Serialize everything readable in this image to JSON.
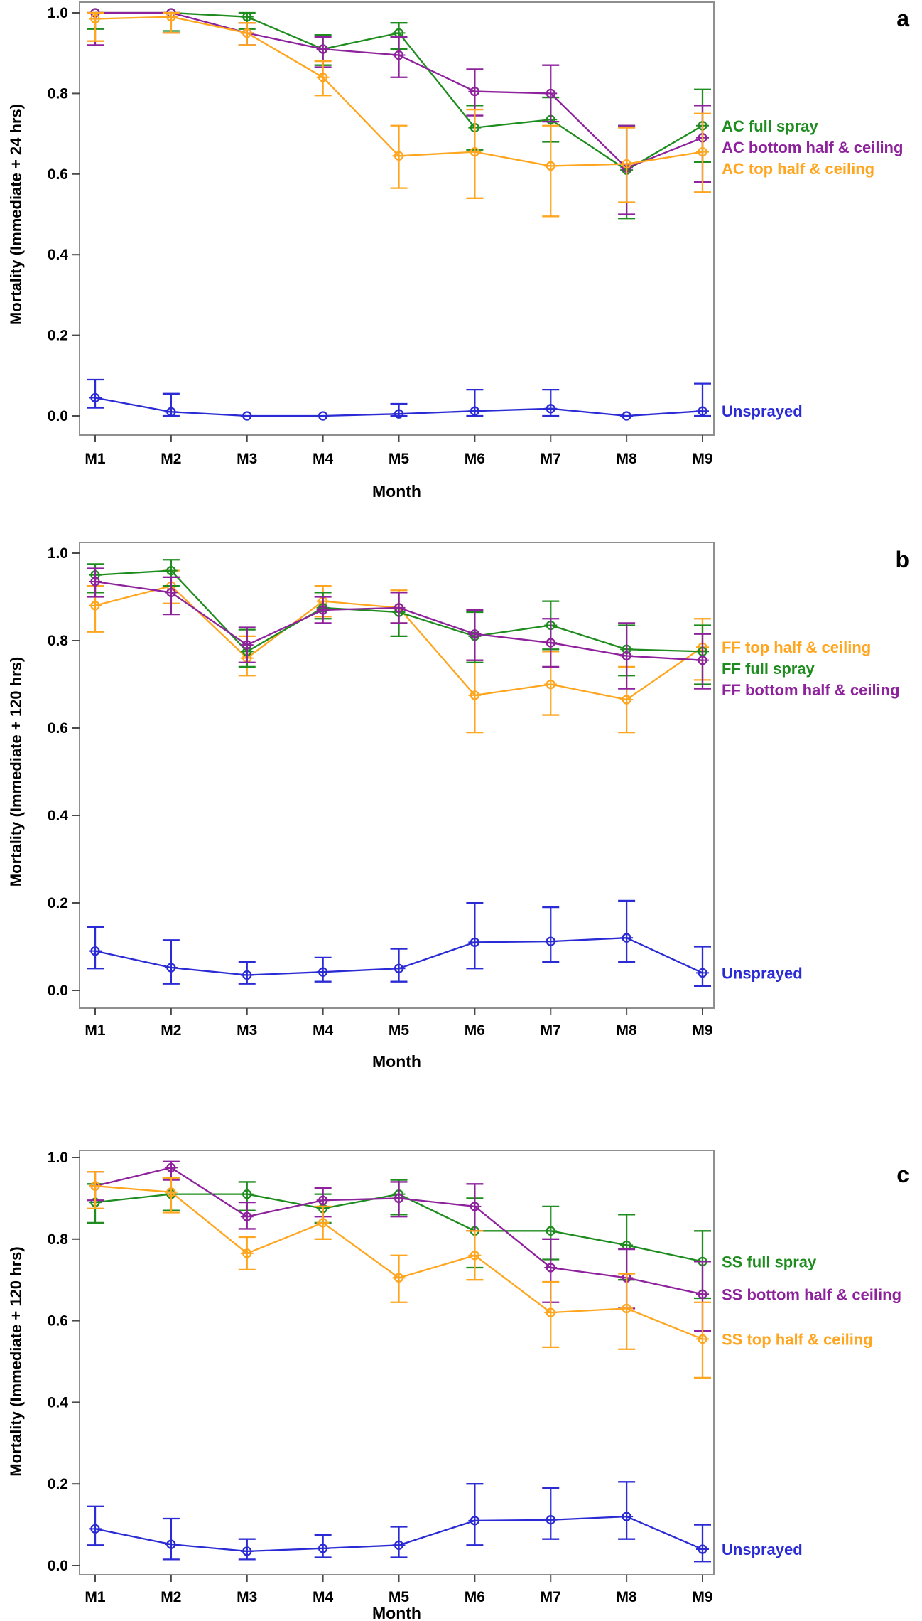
{
  "figure": {
    "xlabel": "Month",
    "categories": [
      "M1",
      "M2",
      "M3",
      "M4",
      "M5",
      "M6",
      "M7",
      "M8",
      "M9"
    ],
    "ytick_labels": [
      "1.0",
      "0.8",
      "0.6",
      "0.4",
      "0.2",
      "0.0"
    ]
  },
  "colors": {
    "green": "#1e8c1e",
    "purple": "#8e219c",
    "orange": "#ffa51e",
    "blue": "#2b2bd5",
    "frame": "#8f8f8f",
    "axis": "#4a4a4a",
    "text": "#000000",
    "background": "#ffffff"
  },
  "chart_data": [
    {
      "type": "line",
      "panel_label": "a",
      "xlabel": "Month",
      "ylabel": "Mortality (Immediate + 24 hrs)",
      "categories": [
        "M1",
        "M2",
        "M3",
        "M4",
        "M5",
        "M6",
        "M7",
        "M8",
        "M9"
      ],
      "ylim": [
        0.0,
        1.0
      ],
      "yticks": [
        1.0,
        0.8,
        0.6,
        0.4,
        0.2,
        0.0
      ],
      "grid": false,
      "legend_position": "right-annotated",
      "marker": "open-circle",
      "error_bars": true,
      "series": [
        {
          "name": "AC full spray",
          "color": "#1e8c1e",
          "values": [
            1.0,
            1.0,
            0.99,
            0.91,
            0.95,
            0.715,
            0.735,
            0.61,
            0.72
          ],
          "err_lo": [
            0.96,
            0.955,
            0.96,
            0.87,
            0.91,
            0.66,
            0.68,
            0.49,
            0.63
          ],
          "err_hi": [
            1.0,
            1.0,
            1.0,
            0.945,
            0.975,
            0.77,
            0.79,
            0.72,
            0.81
          ]
        },
        {
          "name": "AC bottom half & ceiling",
          "color": "#8e219c",
          "values": [
            1.0,
            1.0,
            0.95,
            0.91,
            0.895,
            0.805,
            0.8,
            0.615,
            0.69
          ],
          "err_lo": [
            0.92,
            0.95,
            0.92,
            0.865,
            0.84,
            0.745,
            0.73,
            0.5,
            0.58
          ],
          "err_hi": [
            1.0,
            1.0,
            0.975,
            0.94,
            0.94,
            0.86,
            0.87,
            0.72,
            0.77
          ]
        },
        {
          "name": "AC top half & ceiling",
          "color": "#ffa51e",
          "values": [
            0.985,
            0.99,
            0.95,
            0.84,
            0.645,
            0.655,
            0.62,
            0.625,
            0.655
          ],
          "err_lo": [
            0.93,
            0.95,
            0.92,
            0.795,
            0.565,
            0.54,
            0.495,
            0.53,
            0.555
          ],
          "err_hi": [
            1.0,
            1.0,
            0.975,
            0.88,
            0.72,
            0.76,
            0.72,
            0.715,
            0.75
          ]
        },
        {
          "name": "Unsprayed",
          "color": "#2b2bd5",
          "values": [
            0.045,
            0.01,
            0.0,
            0.0,
            0.005,
            0.012,
            0.018,
            0.0,
            0.012
          ],
          "err_lo": [
            0.02,
            0.0,
            0.0,
            0.0,
            0.0,
            0.0,
            0.0,
            0.0,
            0.0
          ],
          "err_hi": [
            0.09,
            0.055,
            0.0,
            0.0,
            0.03,
            0.065,
            0.065,
            0.0,
            0.08
          ]
        }
      ]
    },
    {
      "type": "line",
      "panel_label": "b",
      "xlabel": "Month",
      "ylabel": "Mortality (Immediate + 120 hrs)",
      "categories": [
        "M1",
        "M2",
        "M3",
        "M4",
        "M5",
        "M6",
        "M7",
        "M8",
        "M9"
      ],
      "ylim": [
        0.0,
        1.0
      ],
      "yticks": [
        1.0,
        0.8,
        0.6,
        0.4,
        0.2,
        0.0
      ],
      "grid": false,
      "legend_position": "right-annotated",
      "marker": "open-circle",
      "error_bars": true,
      "series": [
        {
          "name": "FF top half & ceiling",
          "color": "#ffa51e",
          "values": [
            0.88,
            0.925,
            0.76,
            0.89,
            0.875,
            0.675,
            0.7,
            0.665,
            0.785
          ],
          "err_lo": [
            0.82,
            0.885,
            0.72,
            0.855,
            0.84,
            0.59,
            0.63,
            0.59,
            0.71
          ],
          "err_hi": [
            0.925,
            0.96,
            0.81,
            0.925,
            0.915,
            0.755,
            0.775,
            0.74,
            0.85
          ]
        },
        {
          "name": "FF full spray",
          "color": "#1e8c1e",
          "values": [
            0.95,
            0.96,
            0.775,
            0.875,
            0.865,
            0.81,
            0.835,
            0.78,
            0.775
          ],
          "err_lo": [
            0.91,
            0.925,
            0.74,
            0.85,
            0.81,
            0.75,
            0.78,
            0.72,
            0.7
          ],
          "err_hi": [
            0.975,
            0.985,
            0.825,
            0.91,
            0.91,
            0.865,
            0.89,
            0.835,
            0.835
          ]
        },
        {
          "name": "FF bottom half & ceiling",
          "color": "#8e219c",
          "values": [
            0.935,
            0.91,
            0.79,
            0.87,
            0.875,
            0.815,
            0.795,
            0.765,
            0.755
          ],
          "err_lo": [
            0.9,
            0.86,
            0.75,
            0.84,
            0.84,
            0.755,
            0.74,
            0.69,
            0.69
          ],
          "err_hi": [
            0.965,
            0.945,
            0.83,
            0.9,
            0.91,
            0.87,
            0.85,
            0.84,
            0.815
          ]
        },
        {
          "name": "Unsprayed",
          "color": "#2b2bd5",
          "values": [
            0.09,
            0.052,
            0.035,
            0.042,
            0.05,
            0.11,
            0.112,
            0.12,
            0.04
          ],
          "err_lo": [
            0.05,
            0.015,
            0.015,
            0.02,
            0.02,
            0.05,
            0.065,
            0.065,
            0.01
          ],
          "err_hi": [
            0.145,
            0.115,
            0.065,
            0.075,
            0.095,
            0.2,
            0.19,
            0.205,
            0.1
          ]
        }
      ]
    },
    {
      "type": "line",
      "panel_label": "c",
      "xlabel": "Month",
      "ylabel": "Mortality (Immediate + 120 hrs)",
      "categories": [
        "M1",
        "M2",
        "M3",
        "M4",
        "M5",
        "M6",
        "M7",
        "M8",
        "M9"
      ],
      "ylim": [
        0.0,
        1.0
      ],
      "yticks": [
        1.0,
        0.8,
        0.6,
        0.4,
        0.2,
        0.0
      ],
      "grid": false,
      "legend_position": "right-annotated",
      "marker": "open-circle",
      "error_bars": true,
      "series": [
        {
          "name": "SS full spray",
          "color": "#1e8c1e",
          "values": [
            0.89,
            0.91,
            0.91,
            0.875,
            0.91,
            0.82,
            0.82,
            0.785,
            0.745
          ],
          "err_lo": [
            0.84,
            0.87,
            0.87,
            0.84,
            0.86,
            0.73,
            0.75,
            0.7,
            0.655
          ],
          "err_hi": [
            0.935,
            0.95,
            0.94,
            0.91,
            0.945,
            0.9,
            0.88,
            0.86,
            0.82
          ]
        },
        {
          "name": "SS bottom half & ceiling",
          "color": "#8e219c",
          "values": [
            0.93,
            0.975,
            0.855,
            0.895,
            0.9,
            0.88,
            0.73,
            0.705,
            0.665
          ],
          "err_lo": [
            0.895,
            0.945,
            0.825,
            0.855,
            0.855,
            0.82,
            0.645,
            0.63,
            0.575
          ],
          "err_hi": [
            0.965,
            0.99,
            0.89,
            0.925,
            0.94,
            0.935,
            0.8,
            0.775,
            0.745
          ]
        },
        {
          "name": "SS top half & ceiling",
          "color": "#ffa51e",
          "values": [
            0.93,
            0.915,
            0.765,
            0.84,
            0.705,
            0.76,
            0.62,
            0.63,
            0.555
          ],
          "err_lo": [
            0.875,
            0.865,
            0.725,
            0.8,
            0.645,
            0.7,
            0.535,
            0.53,
            0.46
          ],
          "err_hi": [
            0.965,
            0.95,
            0.805,
            0.88,
            0.76,
            0.82,
            0.695,
            0.715,
            0.645
          ]
        },
        {
          "name": "Unsprayed",
          "color": "#2b2bd5",
          "values": [
            0.09,
            0.052,
            0.035,
            0.042,
            0.05,
            0.11,
            0.112,
            0.12,
            0.04
          ],
          "err_lo": [
            0.05,
            0.015,
            0.015,
            0.02,
            0.02,
            0.05,
            0.065,
            0.065,
            0.01
          ],
          "err_hi": [
            0.145,
            0.115,
            0.065,
            0.075,
            0.095,
            0.2,
            0.19,
            0.205,
            0.1
          ]
        }
      ]
    }
  ]
}
